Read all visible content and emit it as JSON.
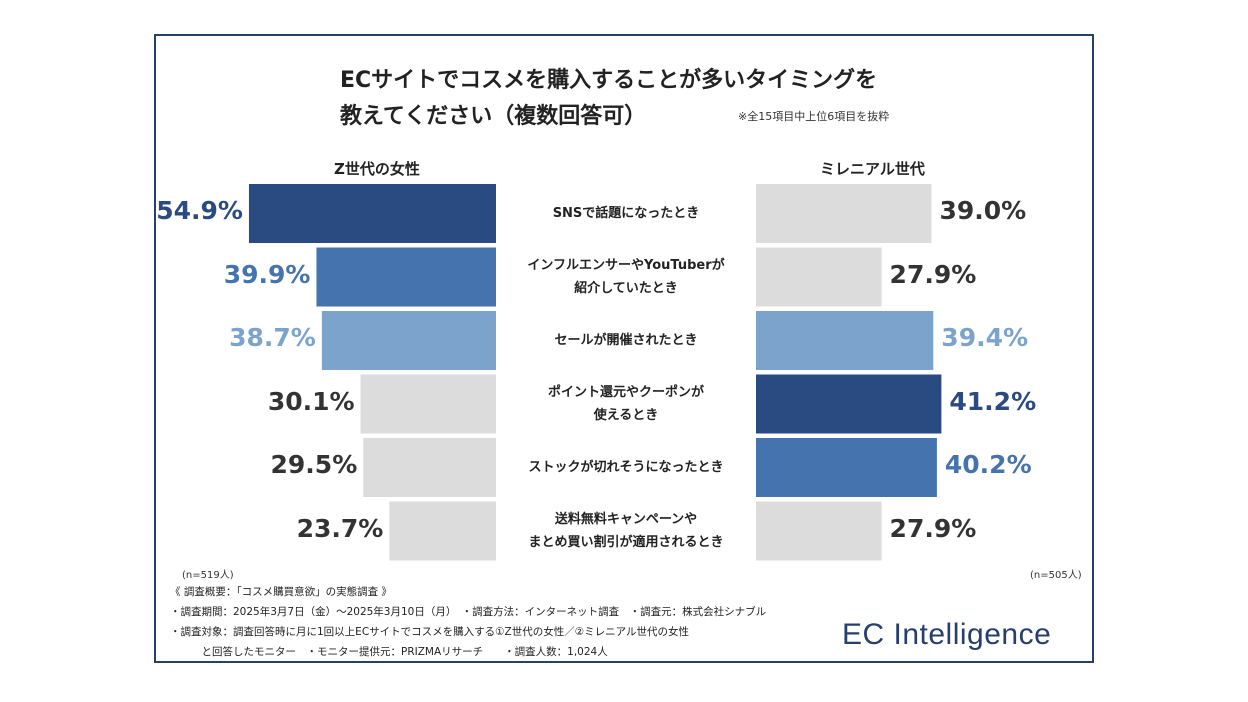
{
  "title_line1": "ECサイトでコスメを購入することが多いタイミングを",
  "title_line2": "教えてください（複数回答可）",
  "note": "※全15項目中上位6項目を抜粋",
  "left_header": "Z世代の女性",
  "right_header": "ミレニアル世代",
  "left_n": "(n=519人)",
  "right_n": "(n=505人)",
  "footnotes": {
    "line1": "《 調査概要：「コスメ購買意欲」の実態調査 》",
    "line2": "・調査期間：2025年3月7日（金）～2025年3月10日（月）　・調査方法：インターネット調査　・調査元：株式会社シナブル",
    "line3": "・調査対象：調査回答時に月に1回以上ECサイトでコスメを購入する①Z世代の女性／②ミレニアル世代の女性",
    "line4": "　　　と回答したモニター　・モニター提供元：PRIZMAリサーチ　　・調査人数：1,024人"
  },
  "brand": "EC Intelligence",
  "colors": {
    "rank1": "#2a4a82",
    "rank2": "#4573ad",
    "rank3": "#7ba3cb",
    "other": "#dcdcdc",
    "border": "#27406b"
  },
  "chart_data": {
    "type": "bar",
    "orientation": "horizontal-butterfly",
    "categories": [
      [
        "SNSで話題になったとき"
      ],
      [
        "インフルエンサーやYouTuberが",
        "紹介していたとき"
      ],
      [
        "セールが開催されたとき"
      ],
      [
        "ポイント還元やクーポンが",
        "使えるとき"
      ],
      [
        "ストックが切れそうになったとき"
      ],
      [
        "送料無料キャンペーンや",
        "まとめ買い割引が適用されるとき"
      ]
    ],
    "series": [
      {
        "name": "Z世代の女性",
        "values": [
          54.9,
          39.9,
          38.7,
          30.1,
          29.5,
          23.7
        ],
        "labels": [
          "54.9%",
          "39.9%",
          "38.7%",
          "30.1%",
          "29.5%",
          "23.7%"
        ],
        "rank": [
          1,
          2,
          3,
          0,
          0,
          0
        ]
      },
      {
        "name": "ミレニアル世代",
        "values": [
          39.0,
          27.9,
          39.4,
          41.2,
          40.2,
          27.9
        ],
        "labels": [
          "39.0%",
          "27.9%",
          "39.4%",
          "41.2%",
          "40.2%",
          "27.9%"
        ],
        "rank": [
          0,
          0,
          3,
          1,
          2,
          0
        ]
      }
    ]
  }
}
